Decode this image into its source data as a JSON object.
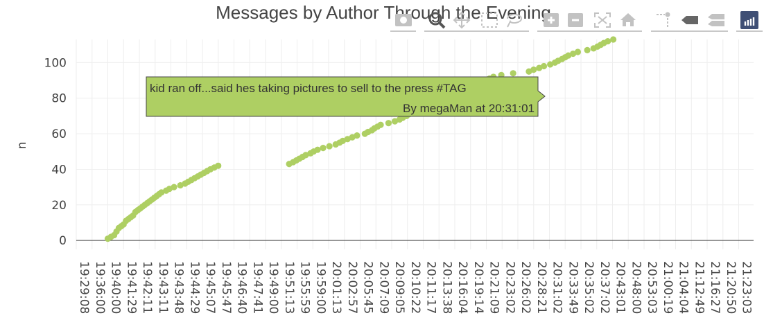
{
  "chart_data": {
    "type": "scatter",
    "title": "Messages by Author Through the Evening",
    "xlabel": "",
    "ylabel": "n",
    "ylim": [
      -5,
      113
    ],
    "yticks": [
      0,
      20,
      40,
      60,
      80,
      100
    ],
    "grid": true,
    "marker_color": "#aecf63",
    "x_tick_labels": [
      "19:29:08",
      "19:36:00",
      "19:40:00",
      "19:41:29",
      "19:42:11",
      "19:43:11",
      "19:43:48",
      "19:44:29",
      "19:45:07",
      "19:45:47",
      "19:46:40",
      "19:47:41",
      "19:49:00",
      "19:51:13",
      "19:55:59",
      "19:59:00",
      "20:01:13",
      "20:02:57",
      "20:05:45",
      "20:07:09",
      "20:09:05",
      "20:10:22",
      "20:11:17",
      "20:13:38",
      "20:16:04",
      "20:19:14",
      "20:21:09",
      "20:23:02",
      "20:26:02",
      "20:28:21",
      "20:31:02",
      "20:33:49",
      "20:35:02",
      "20:37:02",
      "20:43:01",
      "20:48:00",
      "20:53:03",
      "21:00:19",
      "21:04:04",
      "21:12:49",
      "21:16:27",
      "21:20:50",
      "21:23:03"
    ],
    "x": [
      2.0,
      2.2,
      2.4,
      2.55,
      2.7,
      2.85,
      3.0,
      3.15,
      3.3,
      3.45,
      3.6,
      3.75,
      3.9,
      4.05,
      4.2,
      4.35,
      4.5,
      4.65,
      4.8,
      4.95,
      5.1,
      5.25,
      5.4,
      5.7,
      5.9,
      6.2,
      6.6,
      6.9,
      7.1,
      7.3,
      7.5,
      7.7,
      7.9,
      8.1,
      8.3,
      8.5,
      8.75,
      9.0,
      13.5,
      13.75,
      13.95,
      14.15,
      14.35,
      14.55,
      14.85,
      15.05,
      15.3,
      15.65,
      16.05,
      16.45,
      16.7,
      16.9,
      17.2,
      17.5,
      17.8,
      18.3,
      18.5,
      18.75,
      18.9,
      19.1,
      19.3,
      19.8,
      20.2,
      20.5,
      20.7,
      20.95,
      21.1,
      21.3,
      21.6,
      21.85,
      22.1,
      22.4,
      22.65,
      22.9,
      23.2,
      23.45,
      23.6,
      23.85,
      24.1,
      24.45,
      24.8,
      25.05,
      25.3,
      25.55,
      25.75,
      25.95,
      26.2,
      26.45,
      26.95,
      27.7,
      28.7,
      29.0,
      29.35,
      29.65,
      30.05,
      30.35,
      30.55,
      30.8,
      31.0,
      31.2,
      31.5,
      31.8,
      32.4,
      32.8,
      33.05,
      33.25,
      33.45,
      33.7,
      34.05
    ],
    "y": [
      1,
      2,
      3,
      5,
      7,
      8,
      9,
      11,
      12,
      13,
      14,
      16,
      17,
      18,
      19,
      20,
      21,
      22,
      23,
      24,
      25,
      26,
      27,
      28,
      29,
      30,
      31,
      32,
      33,
      34,
      35,
      36,
      37,
      38,
      39,
      40,
      41,
      42,
      43,
      44,
      45,
      46,
      47,
      48,
      49,
      50,
      51,
      52,
      53,
      54,
      55,
      56,
      57,
      58,
      59,
      60,
      61,
      62,
      63,
      64,
      65,
      66,
      67,
      68,
      69,
      70,
      71,
      72,
      73,
      74,
      75,
      76,
      77,
      78,
      79,
      80,
      81,
      82,
      83,
      84,
      85,
      86,
      87,
      88,
      89,
      90,
      91,
      92,
      93,
      94,
      95,
      96,
      97,
      98,
      99,
      100,
      101,
      102,
      103,
      104,
      105,
      106,
      107,
      108,
      109,
      110,
      111,
      112,
      113
    ],
    "hover": {
      "text_line1": "kid ran off...said hes taking pictures to sell to the press  #TAG",
      "text_line2": "By  megaMan  at  20:31:01",
      "color": "#aecf63"
    }
  },
  "modebar": {
    "buttons": [
      "download-camera-icon",
      "zoom-icon",
      "pan-icon",
      "box-select-icon",
      "lasso-select-icon",
      "zoom-in-icon",
      "zoom-out-icon",
      "autoscale-icon",
      "reset-axes-icon",
      "spike-lines-icon",
      "hover-closest-icon",
      "hover-compare-icon",
      "plotly-logo-icon"
    ]
  }
}
